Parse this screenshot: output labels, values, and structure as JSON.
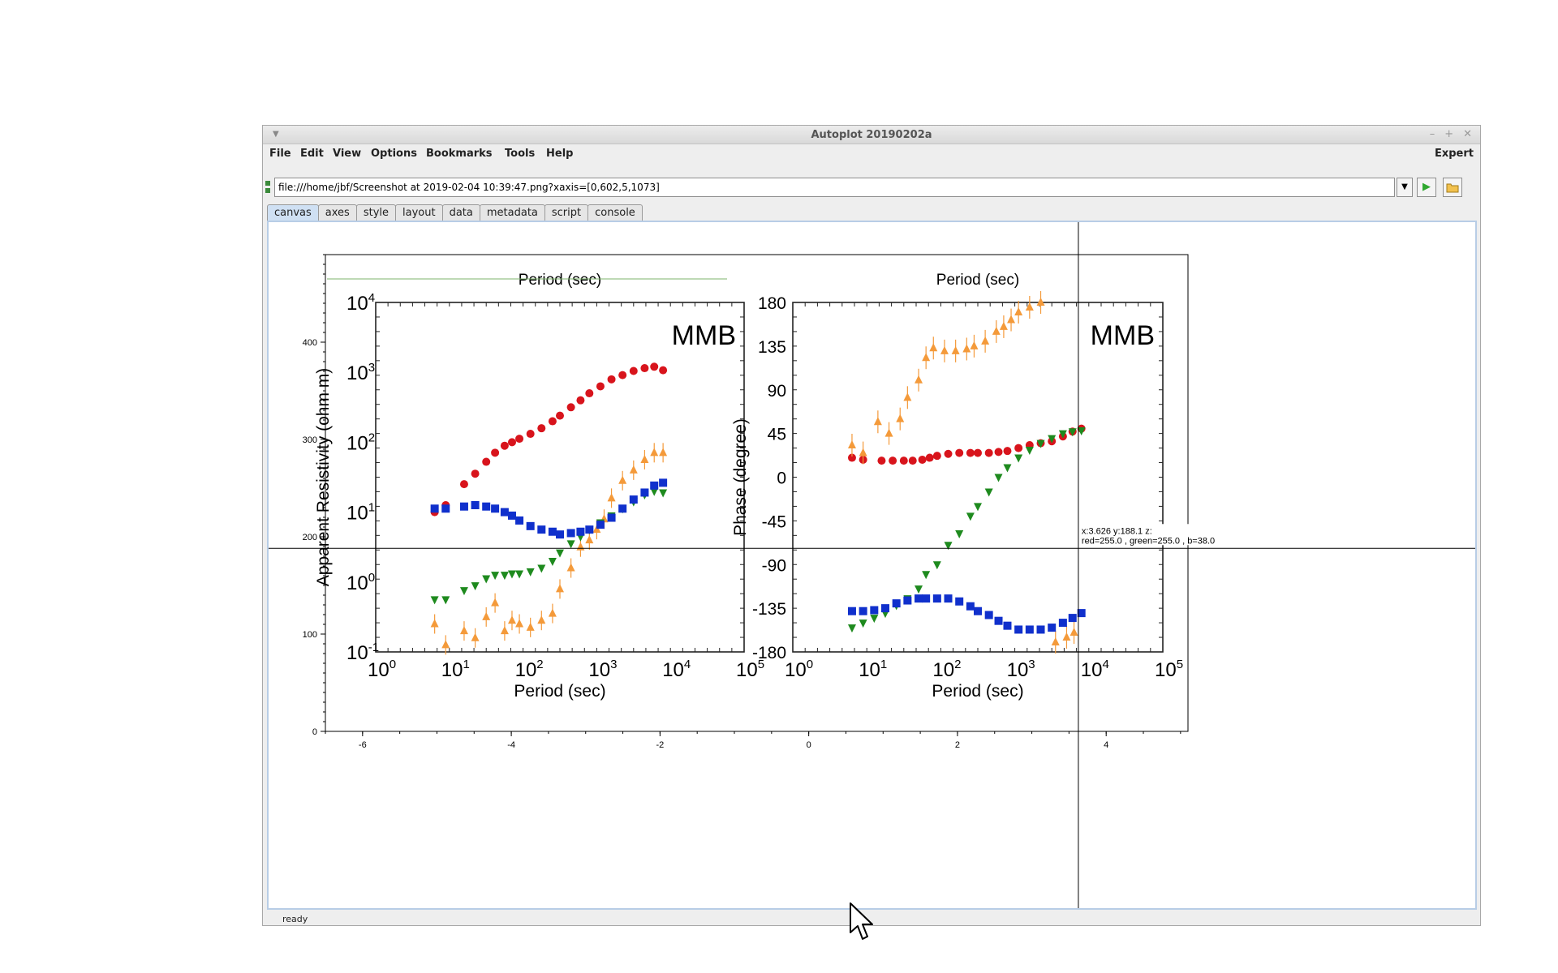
{
  "window": {
    "title": "Autoplot 20190202a",
    "controls": [
      "–",
      "+",
      "✕"
    ]
  },
  "menu": {
    "items": [
      "File",
      "Edit",
      "View",
      "Options",
      "Bookmarks",
      "Tools",
      "Help"
    ],
    "expert": "Expert"
  },
  "url": {
    "value": "file:///home/jbf/Screenshot at 2019-02-04 10:39:47.png?xaxis=[0,602,5,1073]"
  },
  "icons": {
    "dropdown": "chevron-down-icon",
    "go": "play-icon",
    "open": "folder-open-icon"
  },
  "tabs": [
    "canvas",
    "axes",
    "style",
    "layout",
    "data",
    "metadata",
    "script",
    "console"
  ],
  "active_tab": "canvas",
  "status": "ready",
  "readout": {
    "line1": "x:3.626  y:188.1  z:",
    "line2": "red=255.0 , green=255.0 , b=38.0"
  },
  "image_text": {
    "left_panel": {
      "top_label": "Period (sec)",
      "ylabel": "Apparent Resistivity (ohm m)",
      "xlabel": "Period (sec)",
      "station": "MMB",
      "yticks": [
        "10^-1",
        "10^0",
        "10^1",
        "10^2",
        "10^3",
        "10^4"
      ],
      "xticks": [
        "10^0",
        "10^1",
        "10^2",
        "10^3",
        "10^4",
        "10^5"
      ]
    },
    "right_panel": {
      "top_label": "Period (sec)",
      "ylabel": "Phase (degree)",
      "xlabel": "Period (sec)",
      "station": "MMB",
      "yticks": [
        "180",
        "135",
        "90",
        "45",
        "0",
        "-45",
        "-90",
        "-135",
        "-180"
      ],
      "xticks": [
        "10^0",
        "10^1",
        "10^2",
        "10^3",
        "10^4",
        "10^5"
      ]
    }
  },
  "chart_data": {
    "type": "scatter",
    "title": "",
    "xlabel": "",
    "ylabel": "",
    "xlim": [
      -6.5,
      5.1
    ],
    "ylim": [
      0,
      490
    ],
    "x_ticks": [
      -6,
      -4,
      -2,
      0,
      2,
      4
    ],
    "y_ticks": [
      0,
      100,
      200,
      300,
      400
    ],
    "crosshair": {
      "x": 3.626,
      "y": 188.1
    },
    "colors": {
      "red": "#d8141c",
      "orange": "#f49a3a",
      "green": "#1e8a1e",
      "blue": "#1030cc"
    },
    "panels": {
      "resistivity": {
        "series": [
          {
            "color": "red",
            "marker": "circle",
            "points": [
              [
                0.8,
                1.0
              ],
              [
                0.95,
                1.1
              ],
              [
                1.2,
                1.4
              ],
              [
                1.35,
                1.55
              ],
              [
                1.5,
                1.72
              ],
              [
                1.62,
                1.85
              ],
              [
                1.75,
                1.95
              ],
              [
                1.85,
                2.0
              ],
              [
                1.95,
                2.05
              ],
              [
                2.1,
                2.12
              ],
              [
                2.25,
                2.2
              ],
              [
                2.4,
                2.3
              ],
              [
                2.5,
                2.38
              ],
              [
                2.65,
                2.5
              ],
              [
                2.78,
                2.6
              ],
              [
                2.9,
                2.7
              ],
              [
                3.05,
                2.8
              ],
              [
                3.2,
                2.9
              ],
              [
                3.35,
                2.96
              ],
              [
                3.5,
                3.02
              ],
              [
                3.65,
                3.06
              ],
              [
                3.78,
                3.08
              ],
              [
                3.9,
                3.03
              ]
            ]
          },
          {
            "color": "orange",
            "marker": "triangle",
            "points": [
              [
                0.8,
                -0.6
              ],
              [
                0.95,
                -0.9
              ],
              [
                1.2,
                -0.7
              ],
              [
                1.35,
                -0.8
              ],
              [
                1.5,
                -0.5
              ],
              [
                1.62,
                -0.3
              ],
              [
                1.75,
                -0.7
              ],
              [
                1.85,
                -0.55
              ],
              [
                1.95,
                -0.6
              ],
              [
                2.1,
                -0.65
              ],
              [
                2.25,
                -0.55
              ],
              [
                2.4,
                -0.45
              ],
              [
                2.5,
                -0.1
              ],
              [
                2.65,
                0.2
              ],
              [
                2.78,
                0.5
              ],
              [
                2.9,
                0.6
              ],
              [
                3.0,
                0.75
              ],
              [
                3.1,
                0.9
              ],
              [
                3.2,
                1.2
              ],
              [
                3.35,
                1.45
              ],
              [
                3.5,
                1.6
              ],
              [
                3.65,
                1.75
              ],
              [
                3.78,
                1.85
              ],
              [
                3.9,
                1.85
              ]
            ]
          },
          {
            "color": "green",
            "marker": "triangle-down",
            "points": [
              [
                0.8,
                -0.25
              ],
              [
                0.95,
                -0.25
              ],
              [
                1.2,
                -0.12
              ],
              [
                1.35,
                -0.05
              ],
              [
                1.5,
                0.05
              ],
              [
                1.62,
                0.1
              ],
              [
                1.75,
                0.1
              ],
              [
                1.85,
                0.12
              ],
              [
                1.95,
                0.12
              ],
              [
                2.1,
                0.15
              ],
              [
                2.25,
                0.2
              ],
              [
                2.4,
                0.3
              ],
              [
                2.5,
                0.42
              ],
              [
                2.65,
                0.55
              ],
              [
                2.78,
                0.65
              ],
              [
                2.9,
                0.75
              ],
              [
                3.05,
                0.85
              ],
              [
                3.2,
                0.95
              ],
              [
                3.35,
                1.05
              ],
              [
                3.5,
                1.15
              ],
              [
                3.65,
                1.25
              ],
              [
                3.78,
                1.3
              ],
              [
                3.9,
                1.28
              ]
            ]
          },
          {
            "color": "blue",
            "marker": "square",
            "points": [
              [
                0.8,
                1.05
              ],
              [
                0.95,
                1.05
              ],
              [
                1.2,
                1.08
              ],
              [
                1.35,
                1.1
              ],
              [
                1.5,
                1.08
              ],
              [
                1.62,
                1.05
              ],
              [
                1.75,
                1.0
              ],
              [
                1.85,
                0.95
              ],
              [
                1.95,
                0.88
              ],
              [
                2.1,
                0.8
              ],
              [
                2.25,
                0.75
              ],
              [
                2.4,
                0.72
              ],
              [
                2.5,
                0.68
              ],
              [
                2.65,
                0.7
              ],
              [
                2.78,
                0.72
              ],
              [
                2.9,
                0.75
              ],
              [
                3.05,
                0.82
              ],
              [
                3.2,
                0.92
              ],
              [
                3.35,
                1.05
              ],
              [
                3.5,
                1.18
              ],
              [
                3.65,
                1.28
              ],
              [
                3.78,
                1.38
              ],
              [
                3.9,
                1.42
              ]
            ]
          }
        ]
      },
      "phase": {
        "series": [
          {
            "color": "red",
            "marker": "circle",
            "points": [
              [
                0.8,
                20
              ],
              [
                0.95,
                18
              ],
              [
                1.2,
                17
              ],
              [
                1.35,
                17
              ],
              [
                1.5,
                17
              ],
              [
                1.62,
                17
              ],
              [
                1.75,
                18
              ],
              [
                1.85,
                20
              ],
              [
                1.95,
                22
              ],
              [
                2.1,
                24
              ],
              [
                2.25,
                25
              ],
              [
                2.4,
                25
              ],
              [
                2.5,
                25
              ],
              [
                2.65,
                25
              ],
              [
                2.78,
                26
              ],
              [
                2.9,
                27
              ],
              [
                3.05,
                30
              ],
              [
                3.2,
                33
              ],
              [
                3.35,
                35
              ],
              [
                3.5,
                37
              ],
              [
                3.65,
                42
              ],
              [
                3.78,
                47
              ],
              [
                3.9,
                50
              ]
            ]
          },
          {
            "color": "orange",
            "marker": "triangle",
            "points": [
              [
                0.8,
                33
              ],
              [
                0.95,
                25
              ],
              [
                1.15,
                57
              ],
              [
                1.3,
                45
              ],
              [
                1.45,
                60
              ],
              [
                1.55,
                82
              ],
              [
                1.7,
                100
              ],
              [
                1.8,
                123
              ],
              [
                1.9,
                133
              ],
              [
                2.05,
                130
              ],
              [
                2.2,
                130
              ],
              [
                2.35,
                132
              ],
              [
                2.45,
                135
              ],
              [
                2.6,
                140
              ],
              [
                2.75,
                150
              ],
              [
                2.85,
                155
              ],
              [
                2.95,
                162
              ],
              [
                3.05,
                170
              ],
              [
                3.2,
                175
              ],
              [
                3.35,
                180
              ],
              [
                3.55,
                -170
              ],
              [
                3.7,
                -165
              ],
              [
                3.8,
                -160
              ]
            ]
          },
          {
            "color": "green",
            "marker": "triangle-down",
            "points": [
              [
                0.8,
                -155
              ],
              [
                0.95,
                -150
              ],
              [
                1.1,
                -145
              ],
              [
                1.25,
                -140
              ],
              [
                1.4,
                -132
              ],
              [
                1.55,
                -125
              ],
              [
                1.7,
                -115
              ],
              [
                1.8,
                -100
              ],
              [
                1.95,
                -90
              ],
              [
                2.1,
                -70
              ],
              [
                2.25,
                -58
              ],
              [
                2.4,
                -40
              ],
              [
                2.5,
                -30
              ],
              [
                2.65,
                -15
              ],
              [
                2.78,
                0
              ],
              [
                2.9,
                10
              ],
              [
                3.05,
                20
              ],
              [
                3.2,
                28
              ],
              [
                3.35,
                35
              ],
              [
                3.5,
                40
              ],
              [
                3.65,
                45
              ],
              [
                3.78,
                47
              ],
              [
                3.9,
                48
              ]
            ]
          },
          {
            "color": "blue",
            "marker": "square",
            "points": [
              [
                0.8,
                -138
              ],
              [
                0.95,
                -138
              ],
              [
                1.1,
                -137
              ],
              [
                1.25,
                -135
              ],
              [
                1.4,
                -130
              ],
              [
                1.55,
                -127
              ],
              [
                1.7,
                -125
              ],
              [
                1.8,
                -125
              ],
              [
                1.95,
                -125
              ],
              [
                2.1,
                -125
              ],
              [
                2.25,
                -128
              ],
              [
                2.4,
                -133
              ],
              [
                2.5,
                -138
              ],
              [
                2.65,
                -142
              ],
              [
                2.78,
                -148
              ],
              [
                2.9,
                -153
              ],
              [
                3.05,
                -157
              ],
              [
                3.2,
                -157
              ],
              [
                3.35,
                -157
              ],
              [
                3.5,
                -155
              ],
              [
                3.65,
                -150
              ],
              [
                3.78,
                -145
              ],
              [
                3.9,
                -140
              ]
            ]
          }
        ]
      }
    }
  }
}
